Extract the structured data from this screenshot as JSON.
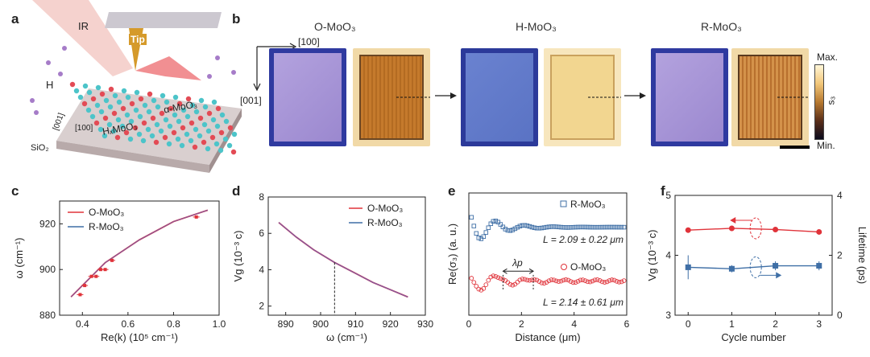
{
  "panel_a": {
    "label": "a",
    "ir": "IR",
    "tip": "Tip",
    "h": "H",
    "dir_001": "[001]",
    "dir_100": "[100]",
    "hx": "HₓMoO₃",
    "alpha": "α-MoO₃",
    "sio2": "SiO₂"
  },
  "panel_b": {
    "label": "b",
    "titles": [
      "O-MoO₃",
      "H-MoO₃",
      "R-MoO₃"
    ],
    "dir_100": "[100]",
    "dir_001": "[001]",
    "cbar_max": "Max.",
    "cbar_min": "Min.",
    "cbar_label": "s₃"
  },
  "panel_c": {
    "label": "c",
    "ylabel": "ω (cm⁻¹)",
    "xlabel": "Re(k) (10⁵ cm⁻¹)",
    "xticks": [
      "0.4",
      "0.6",
      "0.8",
      "1.0"
    ],
    "yticks": [
      "880",
      "900",
      "920"
    ],
    "legend": [
      "O-MoO₃",
      "R-MoO₃"
    ]
  },
  "panel_d": {
    "label": "d",
    "ylabel": "Vg (10⁻³ c)",
    "xlabel": "ω (cm⁻¹)",
    "xticks": [
      "890",
      "900",
      "910",
      "920",
      "930"
    ],
    "yticks": [
      "2",
      "4",
      "6",
      "8"
    ],
    "legend": [
      "O-MoO₃",
      "R-MoO₃"
    ]
  },
  "panel_e": {
    "label": "e",
    "ylabel": "Re(σ₃) (a. u.)",
    "xlabel": "Distance (μm)",
    "xticks": [
      "0",
      "2",
      "4",
      "6"
    ],
    "legend": [
      "R-MoO₃",
      "O-MoO₃"
    ],
    "annot_r": "L = 2.09 ± 0.22 μm",
    "annot_o": "L = 2.14 ± 0.61 μm",
    "lambda": "λp"
  },
  "panel_f": {
    "label": "f",
    "ylabel_left": "Vg (10⁻³ c)",
    "ylabel_right": "Lifetime (ps)",
    "xlabel": "Cycle number",
    "xticks": [
      "0",
      "1",
      "2",
      "3"
    ],
    "yticks_left": [
      "3",
      "4",
      "5"
    ],
    "yticks_right": [
      "0",
      "2",
      "4"
    ]
  },
  "colors": {
    "red": "#e0333a",
    "blue": "#3f6fa6",
    "purple": "#7a5aa8"
  },
  "chart_data": [
    {
      "id": "c",
      "type": "line",
      "xlim": [
        0.3,
        1.0
      ],
      "ylim": [
        880,
        930
      ],
      "series": [
        {
          "name": "O-MoO₃",
          "x": [
            0.35,
            0.5,
            0.65,
            0.8,
            0.95
          ],
          "y": [
            888,
            903,
            913,
            921,
            926
          ]
        },
        {
          "name": "R-MoO₃",
          "x": [
            0.35,
            0.5,
            0.65,
            0.8,
            0.95
          ],
          "y": [
            888,
            903,
            913,
            921,
            926
          ]
        }
      ],
      "points": {
        "x": [
          0.39,
          0.41,
          0.44,
          0.46,
          0.48,
          0.5,
          0.53,
          0.9
        ],
        "y": [
          889,
          893,
          897,
          897,
          900,
          900,
          904,
          923
        ]
      }
    },
    {
      "id": "d",
      "type": "line",
      "xlim": [
        885,
        930
      ],
      "ylim": [
        1.5,
        8
      ],
      "series": [
        {
          "name": "O-MoO₃",
          "x": [
            888,
            893,
            898,
            904,
            910,
            915,
            920,
            925
          ],
          "y": [
            6.6,
            5.8,
            5.1,
            4.4,
            3.8,
            3.3,
            2.9,
            2.5
          ]
        },
        {
          "name": "R-MoO₃",
          "x": [
            888,
            893,
            898,
            904,
            910,
            915,
            920,
            925
          ],
          "y": [
            6.6,
            5.8,
            5.1,
            4.4,
            3.8,
            3.3,
            2.9,
            2.5
          ]
        }
      ],
      "marker_x": 904
    },
    {
      "id": "e",
      "type": "scatter",
      "xlim": [
        0,
        6
      ],
      "series": [
        {
          "name": "R-MoO₃"
        },
        {
          "name": "O-MoO₃"
        }
      ]
    },
    {
      "id": "f",
      "type": "line",
      "xlim": [
        -0.3,
        3.3
      ],
      "series": [
        {
          "name": "Vg",
          "x": [
            0,
            1,
            2,
            3
          ],
          "y": [
            4.42,
            4.45,
            4.43,
            4.39
          ],
          "axis": "left",
          "ylim": [
            3,
            5
          ]
        },
        {
          "name": "Lifetime",
          "x": [
            0,
            1,
            2,
            3
          ],
          "y": [
            1.6,
            1.55,
            1.65,
            1.65
          ],
          "err": [
            0.4,
            0.12,
            0.15,
            0.15
          ],
          "axis": "right",
          "ylim": [
            0,
            4
          ]
        }
      ]
    }
  ]
}
